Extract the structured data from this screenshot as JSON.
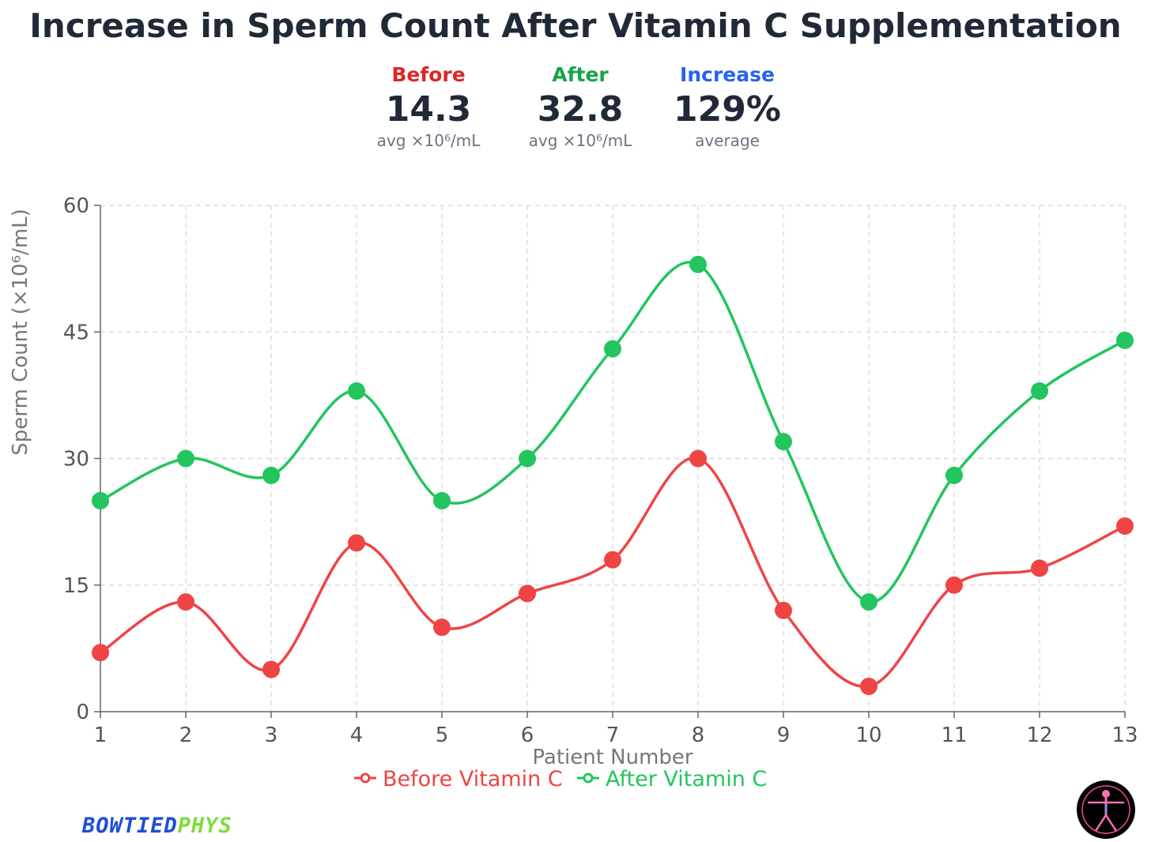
{
  "title": "Increase in Sperm Count After Vitamin C Supplementation",
  "stats": [
    {
      "label": "Before",
      "value": "14.3",
      "sub": "avg ×10⁶/mL",
      "color": "#dc2626"
    },
    {
      "label": "After",
      "value": "32.8",
      "sub": "avg ×10⁶/mL",
      "color": "#16a34a"
    },
    {
      "label": "Increase",
      "value": "129%",
      "sub": "average",
      "color": "#2563eb"
    }
  ],
  "brand": {
    "part1": "BOWTIED",
    "part2": "PHYS"
  },
  "logo_icon": "vitruvian-man-icon",
  "chart_data": {
    "type": "line",
    "x": [
      1,
      2,
      3,
      4,
      5,
      6,
      7,
      8,
      9,
      10,
      11,
      12,
      13
    ],
    "series": [
      {
        "name": "Before Vitamin C",
        "color": "#ef4444",
        "values": [
          7,
          13,
          5,
          20,
          10,
          14,
          18,
          30,
          12,
          3,
          15,
          17,
          22
        ]
      },
      {
        "name": "After Vitamin C",
        "color": "#22c55e",
        "values": [
          25,
          30,
          28,
          38,
          25,
          30,
          43,
          53,
          32,
          13,
          28,
          38,
          44
        ]
      }
    ],
    "xlabel": "Patient Number",
    "ylabel": "Sperm Count (×10⁶/mL)",
    "ylim": [
      0,
      60
    ],
    "yticks": [
      0,
      15,
      30,
      45,
      60
    ],
    "xticks": [
      "1",
      "2",
      "3",
      "4",
      "5",
      "6",
      "7",
      "8",
      "9",
      "10",
      "11",
      "12",
      "13"
    ],
    "grid": true,
    "legend": "bottom-center"
  }
}
